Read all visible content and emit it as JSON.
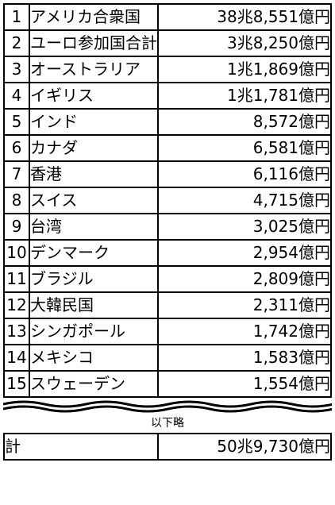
{
  "rows": [
    {
      "rank": "1",
      "name": "アメリカ合衆国",
      "amount": "38兆8,551億円"
    },
    {
      "rank": "2",
      "name": "ユーロ参加国合計",
      "amount": "3兆8,250億円"
    },
    {
      "rank": "3",
      "name": "オーストラリア",
      "amount": "1兆1,869億円"
    },
    {
      "rank": "4",
      "name": "イギリス",
      "amount": "1兆1,781億円"
    },
    {
      "rank": "5",
      "name": "インド",
      "amount": "8,572億円"
    },
    {
      "rank": "6",
      "name": "カナダ",
      "amount": "6,581億円"
    },
    {
      "rank": "7",
      "name": "香港",
      "amount": "6,116億円"
    },
    {
      "rank": "8",
      "name": "スイス",
      "amount": "4,715億円"
    },
    {
      "rank": "9",
      "name": "台湾",
      "amount": "3,025億円"
    },
    {
      "rank": "10",
      "name": "デンマーク",
      "amount": "2,954億円"
    },
    {
      "rank": "11",
      "name": "ブラジル",
      "amount": "2,809億円"
    },
    {
      "rank": "12",
      "name": "大韓民国",
      "amount": "2,311億円"
    },
    {
      "rank": "13",
      "name": "シンガポール",
      "amount": "1,742億円"
    },
    {
      "rank": "14",
      "name": "メキシコ",
      "amount": "1,583億円"
    },
    {
      "rank": "15",
      "name": "スウェーデン",
      "amount": "1,554億円"
    }
  ],
  "omitted_note": "以下略",
  "total": {
    "label": "計",
    "amount": "50兆9,730億円"
  }
}
